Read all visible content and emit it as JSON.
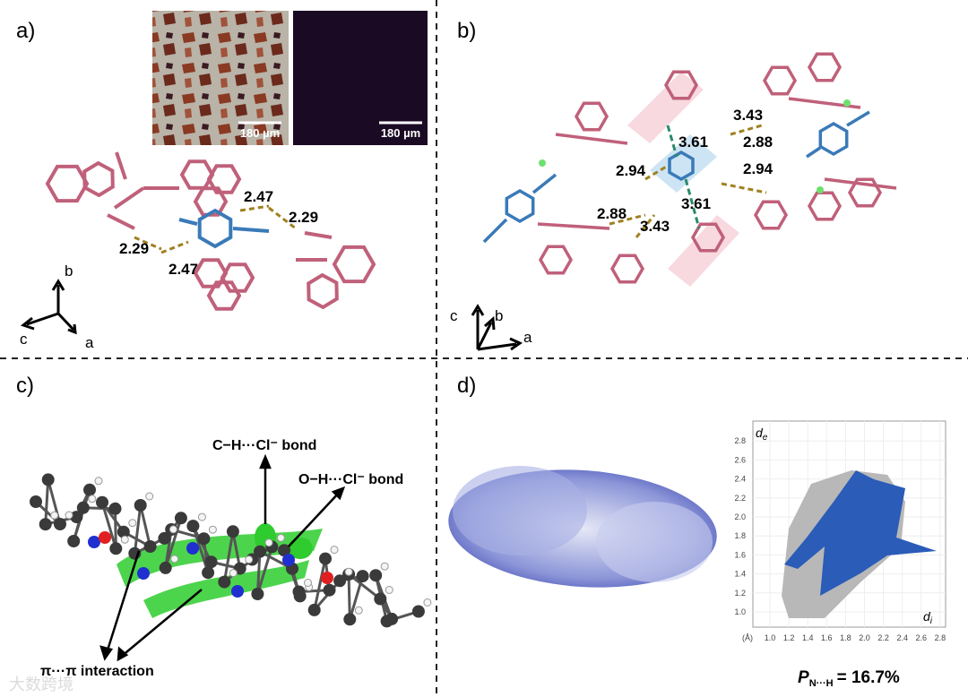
{
  "panels": [
    {
      "label": "a)",
      "scale_bars": [
        "180 µm",
        "180 µm"
      ],
      "distances": [
        "2.47",
        "2.29",
        "2.29",
        "2.47"
      ],
      "axes": [
        "b",
        "c",
        "a"
      ]
    },
    {
      "label": "b)",
      "distances": [
        "3.43",
        "3.61",
        "2.88",
        "2.94",
        "2.94",
        "2.88",
        "3.43",
        "3.61"
      ],
      "axes": [
        "c",
        "b",
        "a"
      ]
    },
    {
      "label": "c)",
      "annotations": [
        "C−H···Cl⁻ bond",
        "O−H···Cl⁻ bond",
        "π···π interaction"
      ]
    },
    {
      "label": "d)",
      "plot": {
        "y_label": "d",
        "y_sub": "e",
        "x_label": "d",
        "x_sub": "i",
        "unit": "(Å)",
        "yticks": [
          "2.8",
          "2.6",
          "2.4",
          "2.2",
          "2.0",
          "1.8",
          "1.6",
          "1.4",
          "1.2",
          "1.0"
        ],
        "xticks": [
          "1.0",
          "1.2",
          "1.4",
          "1.6",
          "1.8",
          "2.0",
          "2.2",
          "2.4",
          "2.6",
          "2.8"
        ]
      },
      "result": {
        "symbol": "P",
        "subscript": "N···H",
        "text": "= 16.7%"
      }
    }
  ],
  "watermark": "大数跨境"
}
